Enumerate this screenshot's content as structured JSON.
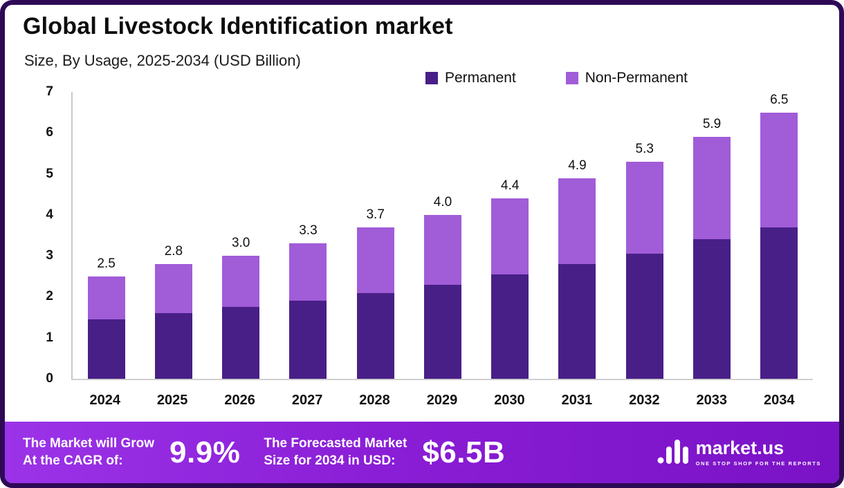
{
  "chart_data": {
    "type": "bar",
    "stacked": true,
    "title": "Global Livestock Identification market",
    "subtitle": "Size, By Usage, 2025-2034 (USD Billion)",
    "categories": [
      "2024",
      "2025",
      "2026",
      "2027",
      "2028",
      "2029",
      "2030",
      "2031",
      "2032",
      "2033",
      "2034"
    ],
    "series": [
      {
        "name": "Permanent",
        "color": "#481f87",
        "values": [
          1.45,
          1.6,
          1.75,
          1.9,
          2.1,
          2.3,
          2.55,
          2.8,
          3.05,
          3.4,
          3.7
        ]
      },
      {
        "name": "Non-Permanent",
        "color": "#a15cd8",
        "values": [
          1.05,
          1.2,
          1.25,
          1.4,
          1.6,
          1.7,
          1.85,
          2.1,
          2.25,
          2.5,
          2.8
        ]
      }
    ],
    "totals": [
      "2.5",
      "2.8",
      "3.0",
      "3.3",
      "3.7",
      "4.0",
      "4.4",
      "4.9",
      "5.3",
      "5.9",
      "6.5"
    ],
    "xlabel": "",
    "ylabel": "",
    "ylim": [
      0,
      7
    ],
    "yticks": [
      0,
      1,
      2,
      3,
      4,
      5,
      6,
      7
    ],
    "legend_position": "top",
    "grid": false
  },
  "footer": {
    "cagr_label_line1": "The Market will Grow",
    "cagr_label_line2": "At the CAGR of:",
    "cagr_value": "9.9%",
    "forecast_label_line1": "The Forecasted Market",
    "forecast_label_line2": "Size for 2034 in USD:",
    "forecast_value": "$6.5B",
    "brand_name": "market.us",
    "brand_tagline": "ONE STOP SHOP FOR THE REPORTS"
  },
  "colors": {
    "frame_border": "#2e0a56",
    "footer_gradient_start": "#9b33e8",
    "footer_gradient_end": "#7a12c6",
    "permanent": "#481f87",
    "non_permanent": "#a15cd8"
  }
}
